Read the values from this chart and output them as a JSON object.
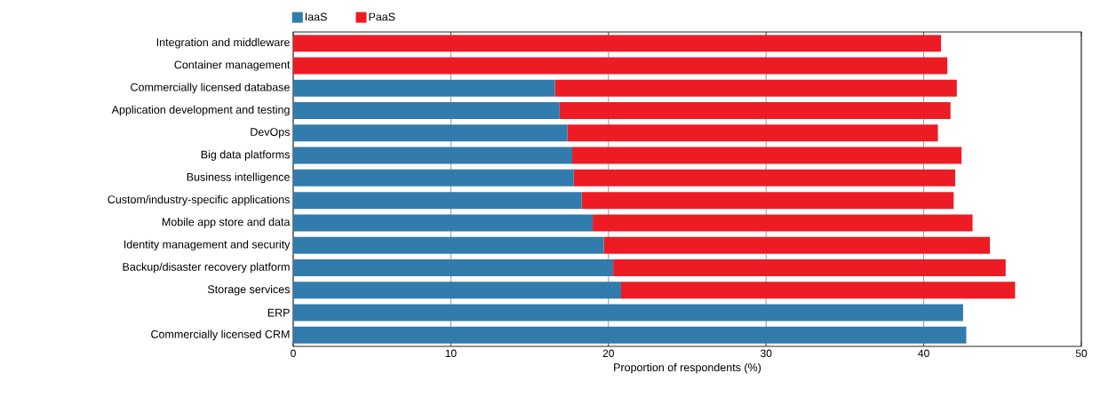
{
  "chart_data": {
    "type": "bar",
    "orientation": "horizontal",
    "stacked": true,
    "xlabel": "Proportion of respondents (%)",
    "categories": [
      "Integration and middleware",
      "Container management",
      "Commercially licensed database",
      "Application development and testing",
      "DevOps",
      "Big data platforms",
      "Business intelligence",
      "Custom/industry-specific applications",
      "Mobile app store and data",
      "Identity management and security",
      "Backup/disaster recovery platform",
      "Storage services",
      "ERP",
      "Commercially licensed CRM"
    ],
    "series": [
      {
        "name": "IaaS",
        "color": "#317cad",
        "values": [
          0,
          0,
          16.6,
          16.9,
          17.4,
          17.7,
          17.8,
          18.3,
          19.0,
          19.7,
          20.3,
          20.8,
          42.5,
          42.7
        ]
      },
      {
        "name": "PaaS",
        "color": "#ed1c24",
        "values": [
          41.1,
          41.5,
          25.5,
          24.8,
          23.5,
          24.7,
          24.2,
          23.6,
          24.1,
          24.5,
          24.9,
          25.0,
          0,
          0
        ]
      }
    ],
    "xlim": [
      0,
      50
    ],
    "xticks": [
      0,
      10,
      20,
      30,
      40,
      50
    ],
    "grid": "x",
    "legend": "top left"
  }
}
